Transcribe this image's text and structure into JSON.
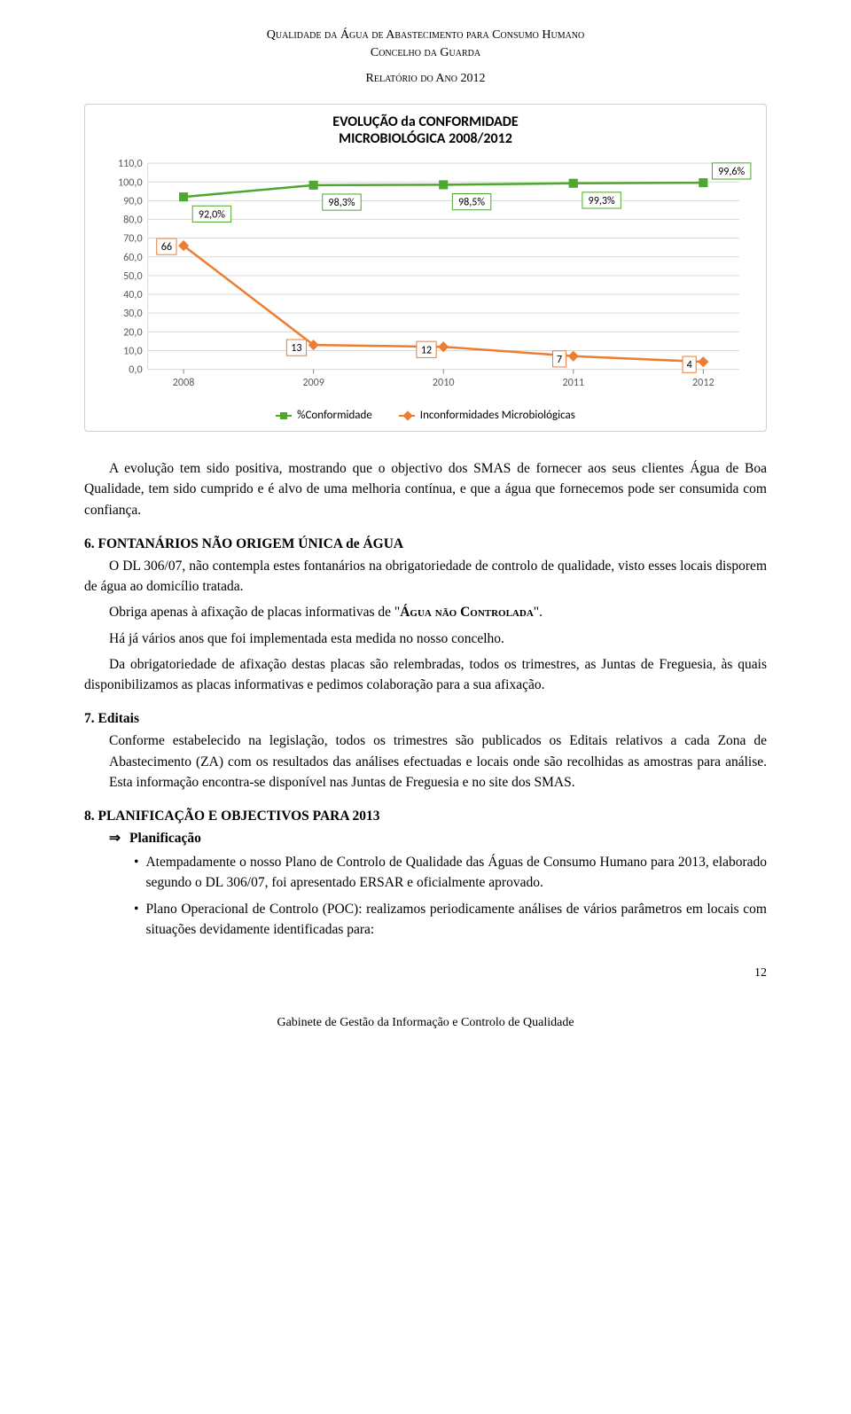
{
  "header": {
    "line1": "Qualidade da Água de Abastecimento para Consumo Humano",
    "line2": "Concelho da Guarda",
    "line3": "Relatório do Ano 2012"
  },
  "chart": {
    "type": "line",
    "title_line1": "EVOLUÇÃO da CONFORMIDADE",
    "title_line2": "MICROBIOLÓGICA 2008/2012",
    "categories": [
      "2008",
      "2009",
      "2010",
      "2011",
      "2012"
    ],
    "ylim": [
      0,
      110
    ],
    "ytick_step": 10,
    "ytick_labels": [
      "0,0",
      "10,0",
      "20,0",
      "30,0",
      "40,0",
      "50,0",
      "60,0",
      "70,0",
      "80,0",
      "90,0",
      "100,0",
      "110,0"
    ],
    "series": [
      {
        "name": "%Conformidade",
        "color": "#4ea72e",
        "marker": "square",
        "values": [
          92.0,
          98.3,
          98.5,
          99.3,
          99.6
        ],
        "labels": [
          "92,0%",
          "98,3%",
          "98,5%",
          "99,3%",
          "99,6%"
        ]
      },
      {
        "name": "Inconformidades Microbiológicas",
        "color": "#ed7d31",
        "marker": "diamond",
        "values": [
          66,
          13,
          12,
          7,
          4
        ],
        "labels": [
          "66",
          "13",
          "12",
          "7",
          "4"
        ]
      }
    ],
    "background_color": "#ffffff",
    "grid_color": "#d9d9d9",
    "label_box_border": "#ed7d31",
    "label_box_border_green": "#4ea72e"
  },
  "para1": "A evolução tem sido positiva, mostrando que o objectivo dos SMAS de fornecer aos seus clientes Água de Boa Qualidade, tem sido cumprido e é alvo de uma melhoria contínua, e que a água que fornecemos pode ser consumida com confiança.",
  "section6": {
    "heading": "6.  FONTANÁRIOS NÃO ORIGEM ÚNICA de ÁGUA",
    "p1": "O DL 306/07, não contempla estes fontanários na obrigatoriedade de controlo de qualidade, visto esses locais disporem de água ao domicílio tratada.",
    "p2_pre": "Obriga apenas à afixação de placas informativas de \"",
    "p2_em": "Água não Controlada",
    "p2_post": "\".",
    "p3": "Há já vários anos que foi implementada esta medida no nosso concelho.",
    "p4": "Da obrigatoriedade de afixação destas placas são relembradas, todos os trimestres, as Juntas de Freguesia, às quais disponibilizamos as placas informativas e pedimos colaboração para a sua afixação."
  },
  "section7": {
    "heading": "7.  Editais",
    "p1": "Conforme estabelecido na legislação, todos os trimestres são publicados os Editais relativos a cada Zona de Abastecimento (ZA) com os resultados das análises efectuadas e locais onde são recolhidas as amostras para análise. Esta informação encontra-se disponível nas Juntas de Freguesia e no site dos SMAS."
  },
  "section8": {
    "heading": "8.  PLANIFICAÇÃO E OBJECTIVOS PARA 2013",
    "sub_heading": "Planificação",
    "bullet1": "Atempadamente o nosso Plano de Controlo de Qualidade das Águas de Consumo Humano para 2013, elaborado segundo o DL 306/07, foi apresentado ERSAR e oficialmente aprovado.",
    "bullet2": "Plano Operacional de Controlo (POC): realizamos periodicamente análises de vários parâmetros em locais com situações devidamente identificadas para:"
  },
  "page_number": "12",
  "footer": "Gabinete de Gestão da Informação e Controlo de Qualidade"
}
